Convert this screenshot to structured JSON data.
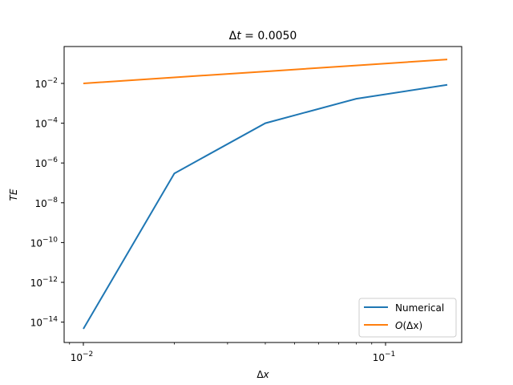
{
  "chart_data": {
    "type": "line",
    "title": "Δt = 0.0050",
    "xlabel": "Δx",
    "ylabel": "TE",
    "xscale": "log",
    "yscale": "log",
    "xlim": [
      0.0085,
      0.19
    ],
    "ylim": [
      2e-16,
      10
    ],
    "x": [
      0.01,
      0.02,
      0.04,
      0.08,
      0.16
    ],
    "series": [
      {
        "name": "Numerical",
        "color": "#1f77b4",
        "values": [
          4.6e-15,
          3e-07,
          0.0001,
          0.0017,
          0.0085
        ]
      },
      {
        "name": "O(Δx)",
        "color": "#ff7f0e",
        "values": [
          0.01,
          0.02,
          0.04,
          0.08,
          0.16
        ]
      }
    ],
    "xticks": [
      {
        "value": 0.01,
        "label": "10^-2"
      },
      {
        "value": 0.1,
        "label": "10^-1"
      }
    ],
    "yticks": [
      {
        "value": 0.01,
        "label": "10^-2"
      },
      {
        "value": 0.0001,
        "label": "10^-4"
      },
      {
        "value": 1e-06,
        "label": "10^-6"
      },
      {
        "value": 1e-08,
        "label": "10^-8"
      },
      {
        "value": 1e-10,
        "label": "10^-10"
      },
      {
        "value": 1e-12,
        "label": "10^-12"
      },
      {
        "value": 1e-14,
        "label": "10^-14"
      }
    ],
    "grid": false,
    "legend_position": "lower right"
  },
  "title": {
    "prefix": "Δ",
    "var": "t",
    "eq": " = 0.0050"
  },
  "xlabel": {
    "prefix": "Δ",
    "var": "x"
  },
  "ylabel": "TE",
  "yticks": [
    {
      "base": "10",
      "exp": "−2"
    },
    {
      "base": "10",
      "exp": "−4"
    },
    {
      "base": "10",
      "exp": "−6"
    },
    {
      "base": "10",
      "exp": "−8"
    },
    {
      "base": "10",
      "exp": "−10"
    },
    {
      "base": "10",
      "exp": "−12"
    },
    {
      "base": "10",
      "exp": "−14"
    }
  ],
  "xticks": [
    {
      "base": "10",
      "exp": "−2"
    },
    {
      "base": "10",
      "exp": "−1"
    }
  ],
  "legend": {
    "items": [
      {
        "label": "Numerical"
      },
      {
        "label_o": "O",
        "label_rest": "(Δx)"
      }
    ]
  }
}
